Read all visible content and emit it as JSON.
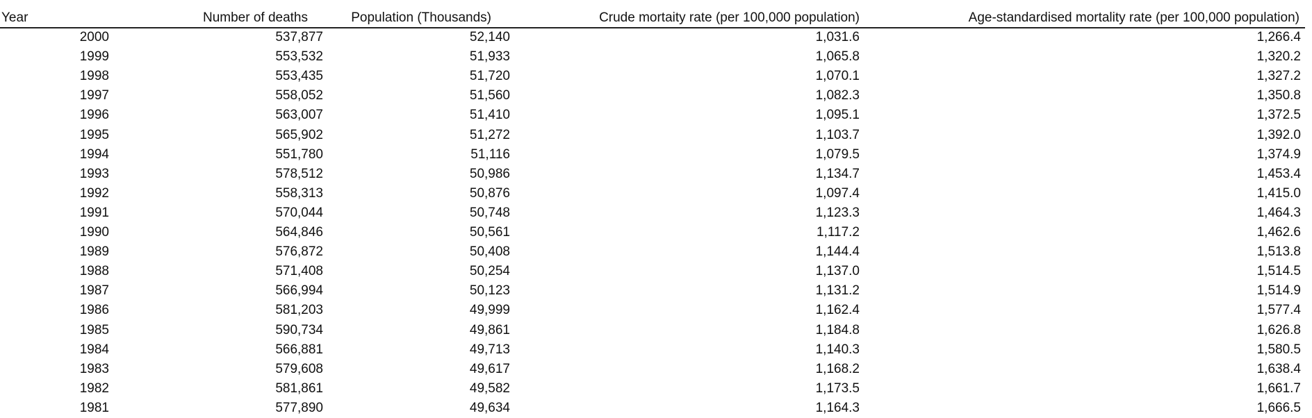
{
  "table": {
    "header": [
      "Year",
      "Number of deaths",
      "Population (Thousands)",
      "Crude mortaity rate (per 100,000 population)",
      "Age-standardised mortality rate (per 100,000 population)"
    ],
    "rows": [
      [
        "2000",
        "537,877",
        "52,140",
        "1,031.6",
        "1,266.4"
      ],
      [
        "1999",
        "553,532",
        "51,933",
        "1,065.8",
        "1,320.2"
      ],
      [
        "1998",
        "553,435",
        "51,720",
        "1,070.1",
        "1,327.2"
      ],
      [
        "1997",
        "558,052",
        "51,560",
        "1,082.3",
        "1,350.8"
      ],
      [
        "1996",
        "563,007",
        "51,410",
        "1,095.1",
        "1,372.5"
      ],
      [
        "1995",
        "565,902",
        "51,272",
        "1,103.7",
        "1,392.0"
      ],
      [
        "1994",
        "551,780",
        "51,116",
        "1,079.5",
        "1,374.9"
      ],
      [
        "1993",
        "578,512",
        "50,986",
        "1,134.7",
        "1,453.4"
      ],
      [
        "1992",
        "558,313",
        "50,876",
        "1,097.4",
        "1,415.0"
      ],
      [
        "1991",
        "570,044",
        "50,748",
        "1,123.3",
        "1,464.3"
      ],
      [
        "1990",
        "564,846",
        "50,561",
        "1,117.2",
        "1,462.6"
      ],
      [
        "1989",
        "576,872",
        "50,408",
        "1,144.4",
        "1,513.8"
      ],
      [
        "1988",
        "571,408",
        "50,254",
        "1,137.0",
        "1,514.5"
      ],
      [
        "1987",
        "566,994",
        "50,123",
        "1,131.2",
        "1,514.9"
      ],
      [
        "1986",
        "581,203",
        "49,999",
        "1,162.4",
        "1,577.4"
      ],
      [
        "1985",
        "590,734",
        "49,861",
        "1,184.8",
        "1,626.8"
      ],
      [
        "1984",
        "566,881",
        "49,713",
        "1,140.3",
        "1,580.5"
      ],
      [
        "1983",
        "579,608",
        "49,617",
        "1,168.2",
        "1,638.4"
      ],
      [
        "1982",
        "581,861",
        "49,582",
        "1,173.5",
        "1,661.7"
      ],
      [
        "1981",
        "577,890",
        "49,634",
        "1,164.3",
        "1,666.5"
      ]
    ]
  }
}
